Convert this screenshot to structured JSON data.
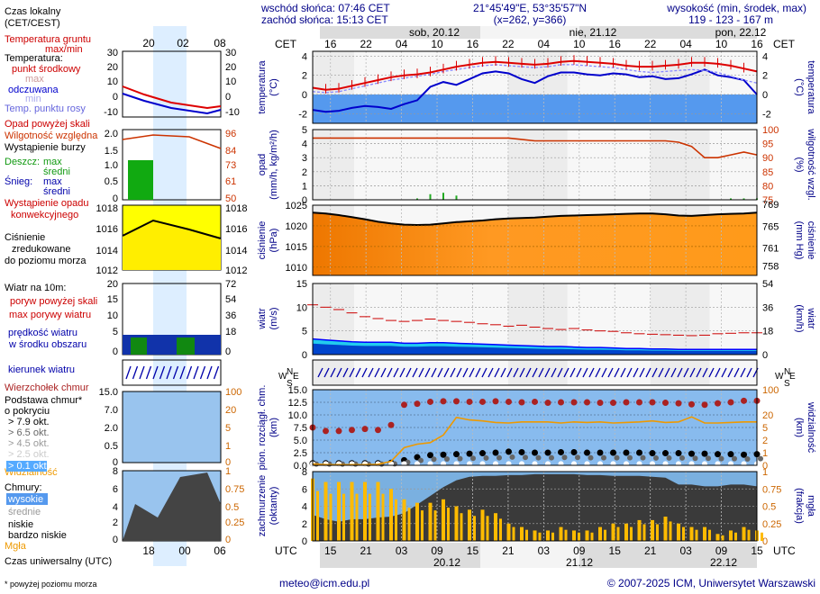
{
  "header": {
    "sunrise": "wschód słońca: 07:46 CET",
    "sunset": "zachód słońca: 15:13 CET",
    "coords": "21°45'49\"E, 53°35'57\"N",
    "grid": "(x=262, y=366)",
    "elev_label": "wysokość (min, środek, max)",
    "elev_values": "119 - 123 - 167 m"
  },
  "time": {
    "tz_top": "CET",
    "tz_bottom": "UTC",
    "day_labels_top": [
      "sob, 20.12",
      "nie, 21.12",
      "pon, 22.12"
    ],
    "hours_top": [
      "16",
      "22",
      "04",
      "10",
      "16",
      "22",
      "04",
      "10",
      "16",
      "22",
      "04",
      "10",
      "16"
    ],
    "hours_bottom": [
      "15",
      "21",
      "03",
      "09",
      "15",
      "21",
      "03",
      "09",
      "15",
      "21",
      "03",
      "09",
      "15"
    ],
    "dates_bottom": [
      "20.12",
      "21.12",
      "22.12"
    ]
  },
  "legend": {
    "local_time": "Czas lokalny",
    "local_time2": "(CET/CEST)",
    "local_hours": [
      "20",
      "02",
      "08"
    ],
    "utc_hours": [
      "18",
      "00",
      "06"
    ],
    "utc_label": "Czas uniwersalny (UTC)",
    "soil": "Temperatura gruntu",
    "soil2": "max/min",
    "temp": "Temperatura:",
    "temp_mid": "punkt środkowy",
    "temp_max": "max",
    "temp_min": "min",
    "temp_felt": "odczuwana",
    "dew": "Temp. punktu rosy",
    "precip_over": "Opad powyżej skali",
    "humidity": "Wilgotność względna",
    "storm": "Wystąpienie burzy",
    "rain": "Deszcz:",
    "rain_max": "max",
    "rain_avg": "średni",
    "snow": "Śnieg:",
    "snow_max": "max",
    "snow_avg": "średni",
    "conv": "Wystąpienie opadu",
    "conv2": "konwekcyjnego",
    "pressure": "Ciśnienie",
    "pressure2": "zredukowane",
    "pressure3": "do poziomu morza",
    "wind": "Wiatr na 10m:",
    "gust_over": "poryw powyżej skali",
    "gust_max": "max porywy wiatru",
    "wind_speed": "prędkość wiatru",
    "wind_speed2": "w środku obszaru",
    "wind_dir": "kierunek wiatru",
    "cb_top": "Wierzchołek chmur",
    "cloud_base": "Podstawa chmur*",
    "cloud_base2": "o pokryciu",
    "okt79": "> 7.9 okt.",
    "okt65": "> 6.5 okt.",
    "okt45": "> 4.5 okt.",
    "okt25": "> 2.5 okt.",
    "okt01": "> 0.1 okt.",
    "visibility": "Widzialność",
    "clouds": "Chmury:",
    "high": "wysokie",
    "mid": "średnie",
    "low": "niskie",
    "vlow": "bardzo niskie",
    "fog": "Mgła",
    "footnote": "* powyżej poziomu morza"
  },
  "axes": {
    "temp_left": "temperatura",
    "temp_left_unit": "(°C)",
    "temp_right": "(°C)",
    "temp_right2": "temperatura",
    "precip_left": "opad",
    "precip_left_unit": "(mm/h, kg/m²/h)",
    "hum_right_unit": "(%)",
    "hum_right": "wilgotność wzgl.",
    "pres_left": "ciśnienie",
    "pres_left_unit": "(hPa)",
    "pres_right_unit": "(mm Hg)",
    "pres_right": "ciśnienie",
    "wind_left": "wiatr",
    "wind_left_unit": "(m/s)",
    "wind_right_unit": "(km/h)",
    "wind_right": "wiatr",
    "cloud_left": "pion. rozciągł. chm.",
    "cloud_left_unit": "(km)",
    "vis_right_unit": "(km)",
    "vis_right": "widzialność",
    "cover_left": "zachmurzenie",
    "cover_left_unit": "(oktanty)",
    "fog_right_unit": "(frakcja)",
    "fog_right": "mgła",
    "compass_n": "N",
    "compass_w": "W",
    "compass_e": "E",
    "compass_s": "S"
  },
  "footer": {
    "email": "meteo@icm.edu.pl",
    "copyright": "© 2007-2025 ICM, Uniwersytet Warszawski"
  },
  "colors": {
    "temp": "#dd0000",
    "felt": "#0000cc",
    "dew": "#8888ff",
    "humidity": "#cc3300",
    "pressure": "#000000",
    "gust": "#cc0000",
    "wind": "#0000ff",
    "visibility": "#ee9900",
    "cloud_base": "#aa2222",
    "fog": "#ffbb00"
  },
  "chart_data": [
    {
      "type": "line",
      "title": "temperatura",
      "ylabel": "(°C)",
      "ylim": [
        -3,
        4.5
      ],
      "x_hours_cet": [
        13,
        88
      ],
      "yticks": [
        -2,
        0,
        2,
        4
      ],
      "series": [
        {
          "name": "punkt środkowy",
          "values": [
            0.7,
            0.5,
            0.6,
            0.9,
            1.2,
            1.5,
            1.8,
            2.0,
            2.1,
            2.3,
            2.6,
            2.9,
            3.1,
            3.3,
            3.4,
            3.3,
            3.2,
            3.1,
            3.2,
            3.4,
            3.5,
            3.4,
            3.3,
            3.2,
            3.0,
            2.9,
            2.9,
            3.0,
            3.1,
            3.3,
            3.3,
            3.2,
            3.0,
            2.7,
            2.4
          ]
        },
        {
          "name": "odczuwana",
          "values": [
            -1.6,
            -1.8,
            -1.7,
            -1.4,
            -1.2,
            -1.3,
            -1.5,
            -1.0,
            -0.6,
            0.8,
            1.3,
            1.0,
            1.6,
            2.2,
            2.4,
            2.2,
            1.6,
            1.2,
            1.9,
            2.3,
            2.3,
            2.1,
            2.0,
            2.2,
            2.1,
            1.8,
            1.9,
            1.6,
            1.7,
            2.1,
            2.6,
            2.0,
            1.8,
            1.5,
            0.0
          ]
        },
        {
          "name": "Temp. punktu rosy",
          "values": [
            0.3,
            0.2,
            0.3,
            0.6,
            0.9,
            1.2,
            1.5,
            1.7,
            1.9,
            2.1,
            2.4,
            2.6,
            2.8,
            3.0,
            3.1,
            3.0,
            2.9,
            2.8,
            2.9,
            3.1,
            3.1,
            3.0,
            2.9,
            2.8,
            2.6,
            2.4,
            2.3,
            2.4,
            2.5,
            2.6,
            2.5,
            2.3,
            1.9,
            1.5,
            1.2
          ]
        }
      ]
    },
    {
      "type": "line",
      "title": "opad / wilgotność wzgl.",
      "ylim_left": [
        0,
        5
      ],
      "ylim_right": [
        75,
        100
      ],
      "series": [
        {
          "name": "Wilgotność względna",
          "values": [
            97,
            97,
            97,
            97,
            97,
            97,
            97,
            97,
            97,
            97,
            97,
            97,
            97,
            97,
            97,
            97,
            96.5,
            96,
            96,
            96,
            96,
            96,
            96,
            96,
            96,
            96,
            96,
            96,
            95.5,
            94,
            90,
            90,
            91,
            92,
            91
          ]
        },
        {
          "name": "opad",
          "values": [
            0,
            0,
            0,
            0,
            0,
            0,
            0,
            0,
            0.1,
            0.4,
            0.5,
            0.3,
            0,
            0,
            0,
            0,
            0,
            0,
            0,
            0,
            0,
            0,
            0,
            0,
            0,
            0,
            0,
            0,
            0,
            0,
            0,
            0,
            0.1,
            0.1,
            0.1
          ]
        }
      ]
    },
    {
      "type": "area",
      "title": "ciśnienie",
      "ylabel": "(hPa)",
      "ylim": [
        1008,
        1025
      ],
      "series": [
        {
          "name": "Ciśnienie",
          "values": [
            1023.2,
            1023.0,
            1022.6,
            1022.1,
            1021.6,
            1021.0,
            1020.6,
            1020.3,
            1020.2,
            1020.3,
            1020.6,
            1020.9,
            1021.1,
            1021.3,
            1021.6,
            1021.8,
            1021.9,
            1022.0,
            1022.2,
            1022.4,
            1022.5,
            1022.6,
            1022.7,
            1022.8,
            1022.9,
            1023.0,
            1023.0,
            1022.8,
            1022.5,
            1022.4,
            1022.6,
            1022.8,
            1022.9,
            1023.0,
            1023.2
          ]
        }
      ]
    },
    {
      "type": "line",
      "title": "wiatr",
      "ylabel": "(m/s)",
      "ylim": [
        0,
        15
      ],
      "series": [
        {
          "name": "max porywy wiatru",
          "values": [
            10.5,
            10.0,
            9.5,
            8.8,
            8.0,
            7.6,
            7.2,
            7.0,
            7.2,
            7.5,
            7.2,
            7.0,
            6.8,
            6.5,
            6.3,
            6.0,
            6.2,
            5.8,
            5.5,
            5.3,
            5.5,
            5.2,
            5.0,
            4.9,
            4.6,
            4.4,
            4.3,
            4.2,
            4.1,
            4.0,
            4.1,
            4.4,
            4.5,
            4.6,
            4.6
          ]
        },
        {
          "name": "prędkość wiatru",
          "values": [
            3.3,
            3.1,
            2.9,
            2.7,
            2.6,
            2.6,
            2.6,
            2.4,
            2.4,
            2.5,
            2.5,
            2.4,
            2.3,
            2.2,
            2.1,
            2.0,
            1.9,
            1.8,
            1.7,
            1.7,
            1.6,
            1.5,
            1.5,
            1.4,
            1.3,
            1.3,
            1.2,
            1.2,
            1.1,
            1.1,
            1.1,
            1.1,
            1.1,
            1.1,
            1.1
          ]
        }
      ]
    },
    {
      "type": "scatter",
      "title": "pion. rozciągł. chm. / widzialność",
      "ylim": [
        0,
        15
      ],
      "series": [
        {
          "name": "Widzialność",
          "values": [
            0.25,
            0.15,
            0.12,
            0.12,
            0.12,
            0.2,
            0.8,
            3.5,
            4.2,
            4.5,
            6.0,
            9.5,
            9.0,
            8.8,
            8.5,
            8.4,
            8.6,
            8.6,
            8.6,
            8.4,
            8.6,
            8.5,
            8.6,
            8.4,
            8.5,
            8.6,
            8.8,
            8.5,
            8.6,
            9.6,
            8.4,
            8.4,
            8.5,
            8.6,
            8.6
          ]
        },
        {
          "name": "> 7.9 okt.",
          "values": [
            0.4,
            0.4,
            0.4,
            0.4,
            0.4,
            0.4,
            0.5,
            1.0,
            1.6,
            2.0,
            2.1,
            2.2,
            2.3,
            2.4,
            2.5,
            2.7,
            2.6,
            2.5,
            2.5,
            2.6,
            2.6,
            2.5,
            2.5,
            2.5,
            2.5,
            2.5,
            2.4,
            2.4,
            2.4,
            2.3,
            2.3,
            2.2,
            2.2,
            2.1,
            2.2
          ]
        },
        {
          "name": "Wierzchołek chmur",
          "values": [
            7.5,
            6.8,
            6.8,
            7.0,
            7.2,
            7.0,
            8.0,
            12.0,
            12.2,
            12.6,
            12.7,
            12.7,
            12.6,
            12.6,
            12.7,
            12.6,
            12.5,
            12.6,
            12.4,
            12.5,
            12.5,
            12.5,
            12.4,
            12.4,
            12.5,
            12.5,
            12.5,
            12.4,
            12.3,
            12.1,
            12.0,
            12.3,
            12.5,
            12.8,
            12.8
          ]
        }
      ]
    },
    {
      "type": "bar",
      "title": "zachmurzenie / mgła",
      "ylim_left": [
        0,
        8
      ],
      "ylim_right": [
        0,
        1
      ],
      "series": [
        {
          "name": "Mgła",
          "values": [
            0.9,
            0.85,
            0.85,
            0.85,
            0.85,
            0.85,
            0.75,
            0.6,
            0.55,
            0.55,
            0.6,
            0.5,
            0.45,
            0.45,
            0.4,
            0.25,
            0.2,
            0.15,
            0.15,
            0.2,
            0.15,
            0.15,
            0.2,
            0.25,
            0.25,
            0.3,
            0.3,
            0.35,
            0.25,
            0.2,
            0.2,
            0.1,
            0.15,
            0.2,
            0.15
          ]
        },
        {
          "name": "niskie",
          "values": [
            3.0,
            2.5,
            2.2,
            2.5,
            2.5,
            2.7,
            2.8,
            3.2,
            4.2,
            5.2,
            6.2,
            7.0,
            7.4,
            7.5,
            7.5,
            7.6,
            7.6,
            7.7,
            7.7,
            7.7,
            7.7,
            7.6,
            7.6,
            7.5,
            7.5,
            7.5,
            7.4,
            7.3,
            6.5,
            6.5,
            6.3,
            6.3,
            6.5,
            6.5,
            6.3
          ]
        }
      ]
    }
  ]
}
